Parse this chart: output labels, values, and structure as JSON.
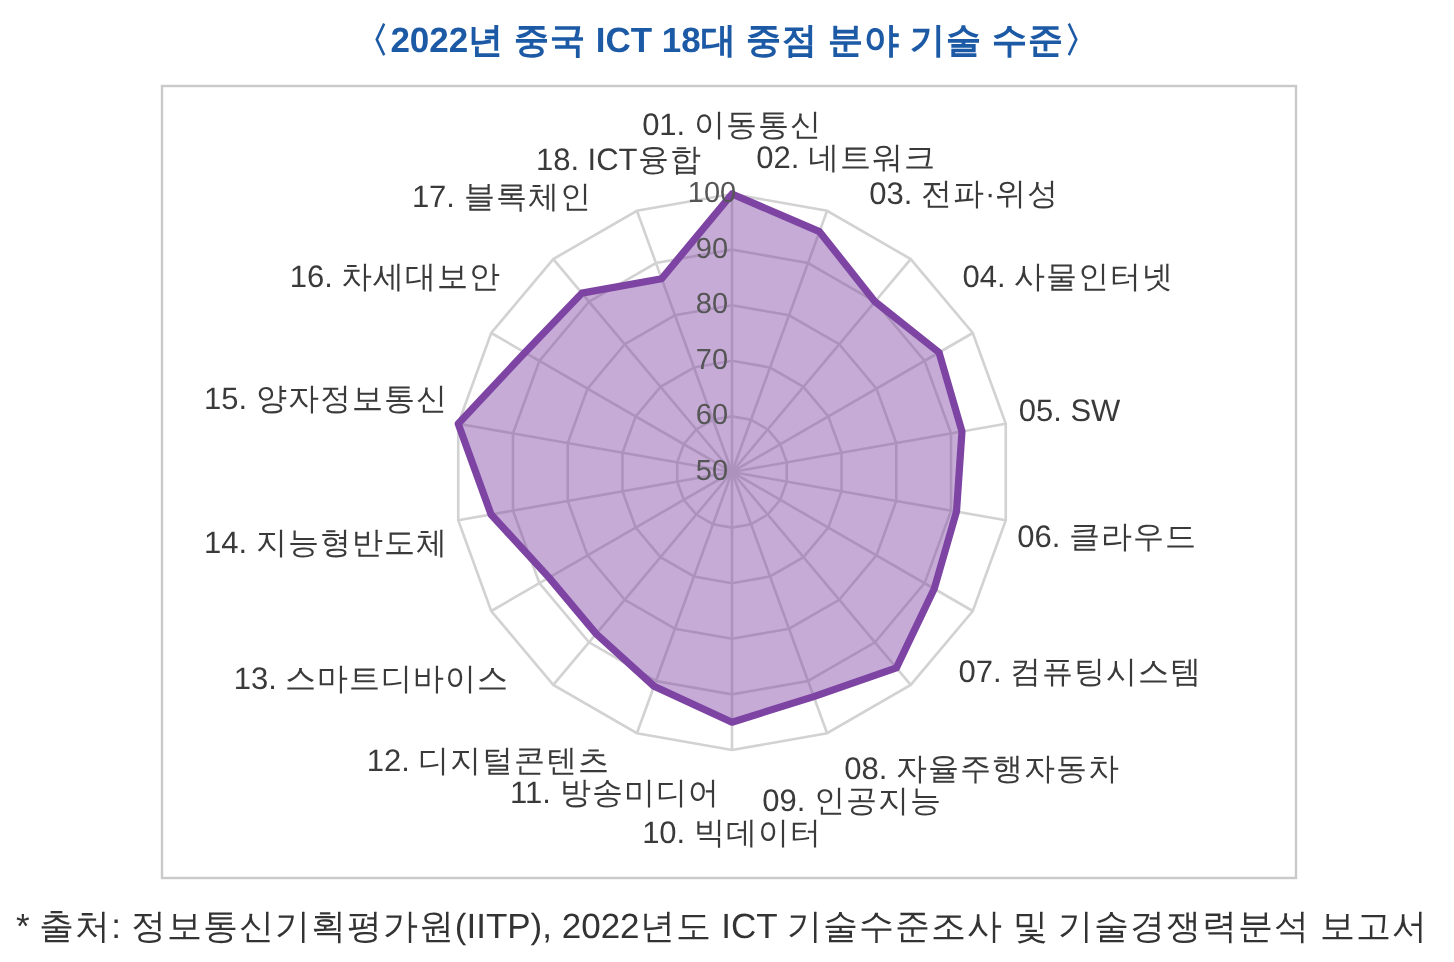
{
  "chart_data": {
    "type": "radar",
    "title": "〈2022년 중국 ICT 18대 중점 분야 기술 수준〉",
    "categories": [
      "01. 이동통신",
      "02. 네트워크",
      "03. 전파·위성",
      "04. 사물인터넷",
      "05. SW",
      "06. 클라우드",
      "07. 컴퓨팅시스템",
      "08. 자율주행자동차",
      "09. 인공지능",
      "10. 빅데이터",
      "11. 방송미디어",
      "12. 디지털콘텐츠",
      "13. 스마트디바이스",
      "14. 지능형반도체",
      "15. 양자정보통신",
      "16. 차세대보안",
      "17. 블록체인",
      "18. ICT융합"
    ],
    "series": [
      {
        "color": "#7e44a3",
        "values": [
          100,
          96,
          90,
          93,
          92,
          91,
          92,
          96,
          93,
          95,
          91,
          88,
          88,
          94,
          100,
          93,
          92,
          87
        ]
      }
    ],
    "ylim": [
      50,
      100
    ],
    "yticks": [
      50,
      60,
      70,
      80,
      90,
      100
    ],
    "grid": true,
    "annotations": [
      "* 출처: 정보통신기획평가원(IITP), 2022년도 ICT 기술수준조사 및 기술경쟁력분석 보고서"
    ]
  }
}
